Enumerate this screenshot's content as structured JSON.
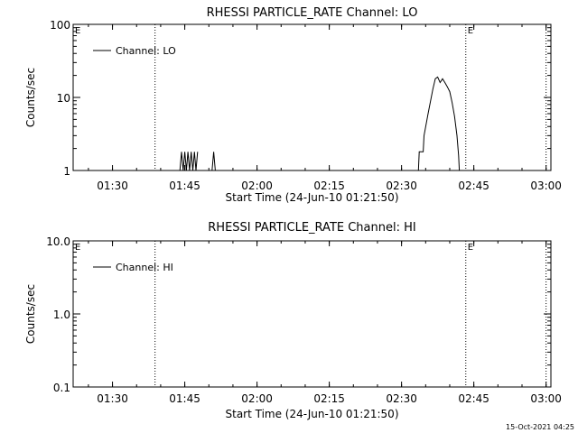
{
  "chart_data": [
    {
      "type": "line",
      "title": "RHESSI PARTICLE_RATE Channel: LO",
      "xlabel": "Start Time (24-Jun-10 01:21:50)",
      "ylabel": "Counts/sec",
      "yscale": "log",
      "xlim": [
        "01:21:50",
        "03:01:00"
      ],
      "ylim": [
        1,
        100
      ],
      "xticks": [
        "01:30",
        "01:45",
        "02:00",
        "02:15",
        "02:30",
        "02:45",
        "03:00"
      ],
      "yticks": [
        "1",
        "10",
        "100"
      ],
      "legend": {
        "position": "top-left",
        "label": "Channel: LO"
      },
      "series": [
        {
          "name": "Channel: LO",
          "segments": [
            {
              "x": [
                "01:44:00",
                "01:44:20",
                "01:44:40",
                "01:45:00",
                "01:45:20",
                "01:45:40",
                "01:46:00",
                "01:46:20",
                "01:46:40",
                "01:47:00",
                "01:47:20",
                "01:47:40"
              ],
              "y": [
                1,
                1.8,
                1,
                1.8,
                1,
                1.8,
                1,
                1.8,
                1,
                1.8,
                1,
                1.8
              ]
            },
            {
              "x": [
                "01:50:40",
                "01:51:00",
                "01:51:20"
              ],
              "y": [
                1,
                1.8,
                1
              ]
            },
            {
              "x": [
                "02:33:30",
                "02:33:40",
                "02:34:30",
                "02:34:40",
                "02:35:30",
                "02:36:30",
                "02:37:00",
                "02:37:30",
                "02:38:00",
                "02:38:30",
                "02:39:00",
                "02:39:30",
                "02:40:00",
                "02:40:30",
                "02:41:00",
                "02:41:30",
                "02:41:50",
                "02:42:00"
              ],
              "y": [
                1,
                1.8,
                1.8,
                3,
                6,
                13,
                18,
                19,
                16,
                18,
                16,
                14,
                12,
                8.5,
                5.5,
                3,
                1.6,
                1
              ]
            }
          ]
        }
      ],
      "annotations": [
        {
          "type": "vline",
          "x": "01:38:50",
          "style": "dotted"
        },
        {
          "type": "vline",
          "x": "02:43:20",
          "style": "dotted",
          "label": "E"
        },
        {
          "type": "vline",
          "x": "03:00:00",
          "style": "dotted"
        },
        {
          "type": "text",
          "x": "start",
          "label": "E"
        }
      ]
    },
    {
      "type": "line",
      "title": "RHESSI PARTICLE_RATE Channel: HI",
      "xlabel": "Start Time (24-Jun-10 01:21:50)",
      "ylabel": "Counts/sec",
      "yscale": "log",
      "xlim": [
        "01:21:50",
        "03:01:00"
      ],
      "ylim": [
        0.1,
        10
      ],
      "xticks": [
        "01:30",
        "01:45",
        "02:00",
        "02:15",
        "02:30",
        "02:45",
        "03:00"
      ],
      "yticks": [
        "0.1",
        "1.0",
        "10.0"
      ],
      "legend": {
        "position": "top-left",
        "label": "Channel: HI"
      },
      "series": [
        {
          "name": "Channel: HI",
          "segments": []
        }
      ],
      "annotations": [
        {
          "type": "vline",
          "x": "01:38:50",
          "style": "dotted"
        },
        {
          "type": "vline",
          "x": "02:43:20",
          "style": "dotted",
          "label": "E"
        },
        {
          "type": "vline",
          "x": "03:00:00",
          "style": "dotted"
        },
        {
          "type": "text",
          "x": "start",
          "label": "E"
        }
      ]
    }
  ],
  "footer": {
    "timestamp": "15-Oct-2021 04:25"
  }
}
